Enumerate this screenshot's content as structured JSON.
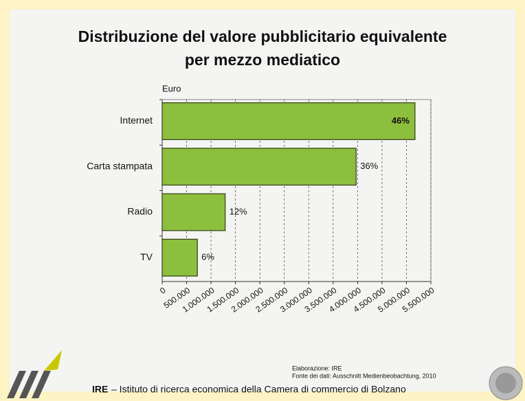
{
  "chart_data": {
    "type": "bar",
    "orientation": "horizontal",
    "title": "Distribuzione del valore pubblicitario equivalente",
    "subtitle": "per mezzo mediatico",
    "axis_label": "Euro",
    "categories": [
      "Internet",
      "Carta stampata",
      "Radio",
      "TV"
    ],
    "values": [
      5175000,
      3970000,
      1290000,
      720000
    ],
    "percent_labels": [
      "46%",
      "36%",
      "12%",
      "6%"
    ],
    "color": "#8dbf3e",
    "xlim": [
      0,
      5500000
    ],
    "xticks": [
      0,
      {
        "value": 500000,
        "label": "500.000"
      },
      {
        "value": 1000000,
        "label": "1.000.000"
      },
      {
        "value": 1500000,
        "label": "1.500.000"
      },
      {
        "value": 2000000,
        "label": "2.000.000"
      },
      {
        "value": 2500000,
        "label": "2.500.000"
      },
      {
        "value": 3000000,
        "label": "3.000.000"
      },
      {
        "value": 3500000,
        "label": "3.500.000"
      },
      {
        "value": 4000000,
        "label": "4.000.000"
      },
      {
        "value": 4500000,
        "label": "4.500.000"
      },
      {
        "value": 5000000,
        "label": "5.000.000"
      },
      {
        "value": 5500000,
        "label": "5.500.000"
      }
    ],
    "grid": true,
    "note_1": "Elaborazione: IRE",
    "note_2": "Fonte dei dati: Ausschnitt Medienbeobachtung, 2010",
    "footer_org": "IRE",
    "footer": "– Istituto di ricerca economica della Camera di commercio di Bolzano"
  }
}
